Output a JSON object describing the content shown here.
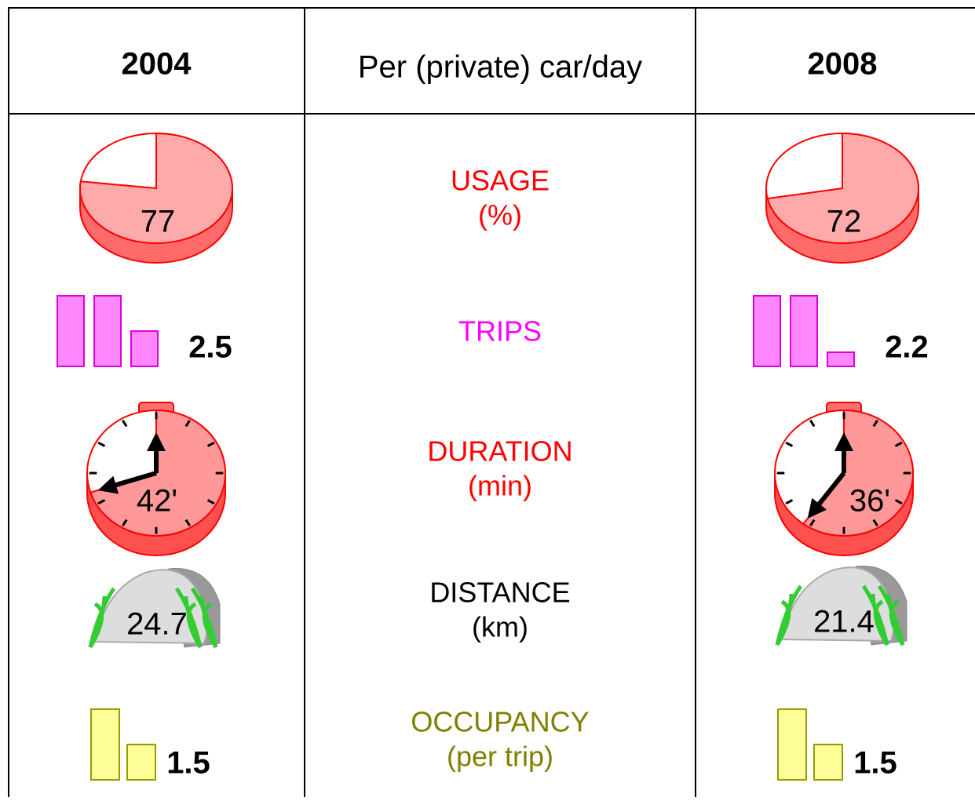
{
  "header": {
    "left": "2004",
    "middle": "Per (private) car/day",
    "right": "2008"
  },
  "rows": [
    {
      "label": [
        "USAGE",
        "(%)"
      ],
      "color": "#ff0000",
      "v2004": "77",
      "v2008": "72"
    },
    {
      "label": [
        "TRIPS"
      ],
      "color": "#ff00ff",
      "v2004": "2.5",
      "v2008": "2.2"
    },
    {
      "label": [
        "DURATION",
        "(min)"
      ],
      "color": "#ff0000",
      "v2004": "42'",
      "v2008": "36'"
    },
    {
      "label": [
        "DISTANCE",
        "(km)"
      ],
      "color": "#000000",
      "v2004": "24.7",
      "v2008": "21.4"
    },
    {
      "label": [
        "OCCUPANCY",
        "(per trip)"
      ],
      "color": "#808000",
      "v2004": "1.5",
      "v2008": "1.5"
    }
  ]
}
